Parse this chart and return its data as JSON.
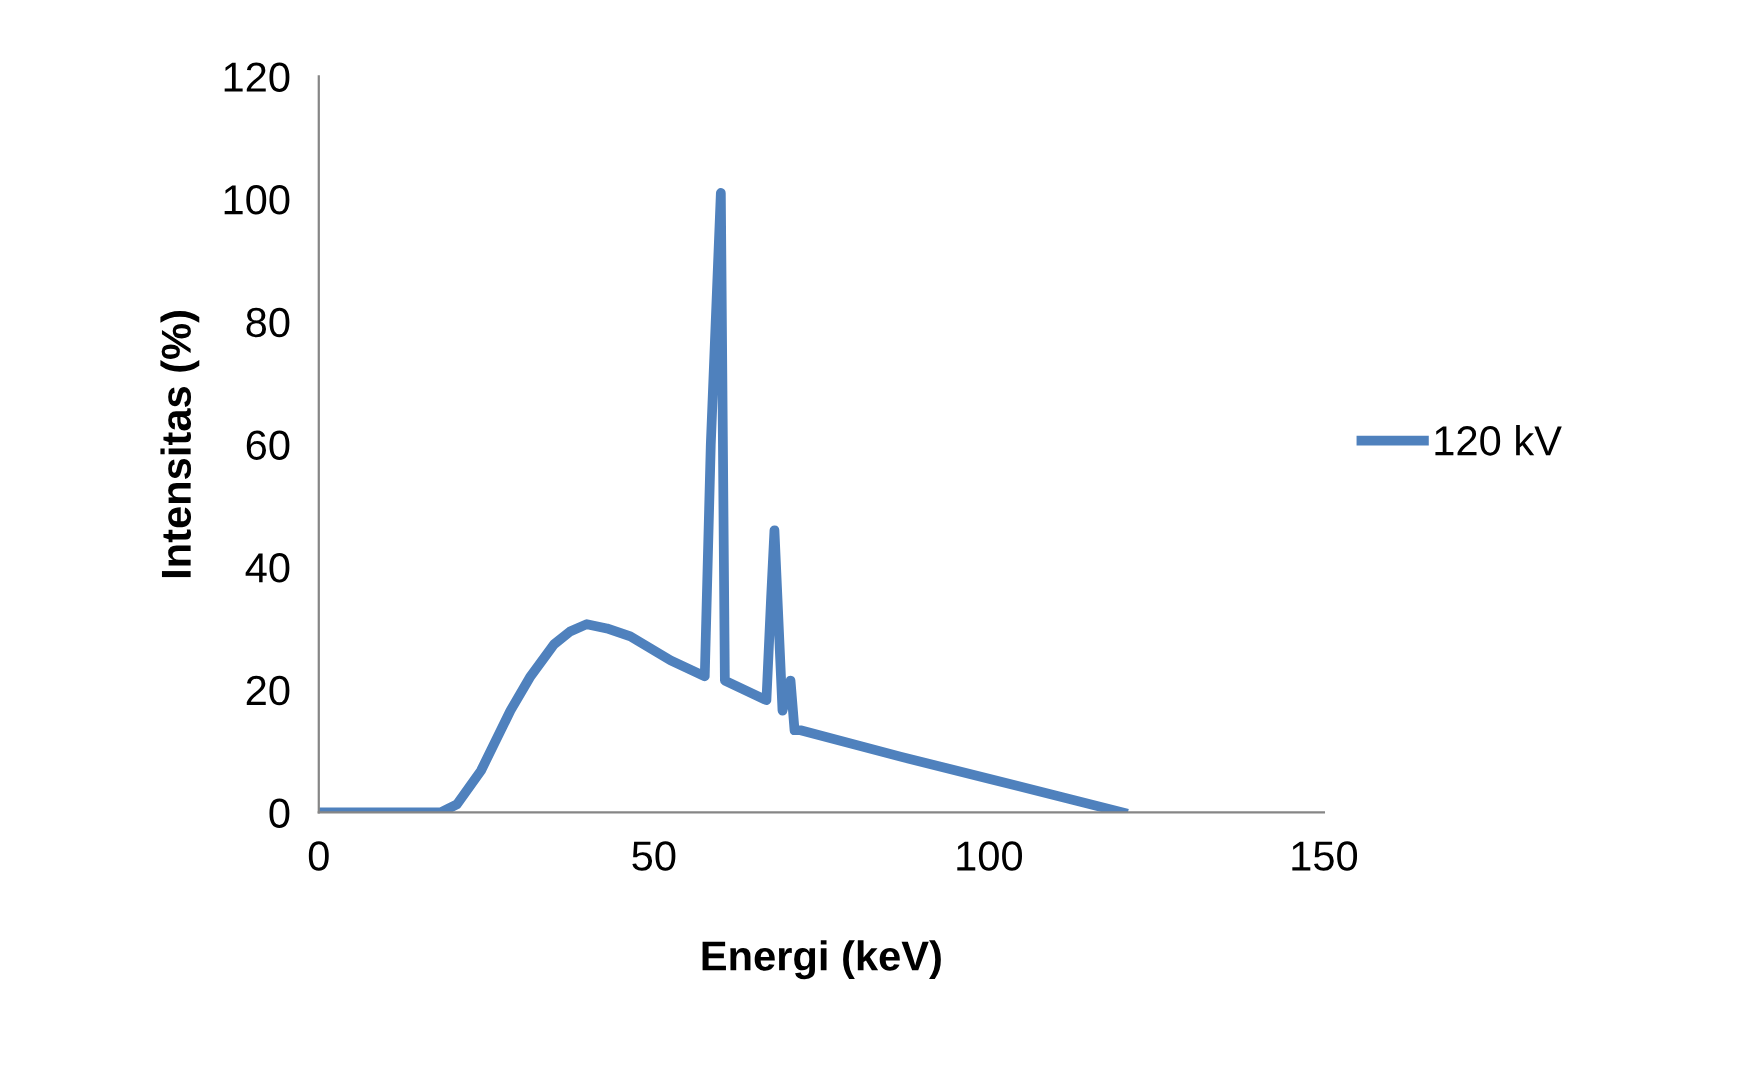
{
  "chart_data": {
    "type": "line",
    "xlabel": "Energi (keV)",
    "ylabel": "Intensitas (%)",
    "xlim": [
      0,
      150
    ],
    "xticks": [
      0,
      50,
      100,
      150
    ],
    "ylim": [
      0,
      120
    ],
    "yticks": [
      0,
      20,
      40,
      60,
      80,
      100,
      120
    ],
    "grid": false,
    "legend": "right",
    "marker": "none",
    "line_style": "solid",
    "series": [
      {
        "name": "120 kV",
        "color": "#4f81bd",
        "x": [
          0,
          18.2,
          20.6,
          24.2,
          28.6,
          31.6,
          35.1,
          37.5,
          40,
          43,
          46.5,
          52.5,
          57.6,
          58.5,
          60,
          60.6,
          66.8,
          67.5,
          68,
          69.2,
          70.4,
          71,
          71.9,
          86.8,
          100,
          120
        ],
        "values": [
          0,
          0,
          1.3,
          6.8,
          16.6,
          22.2,
          27.4,
          29.5,
          30.7,
          30,
          28.7,
          24.8,
          22.2,
          60,
          101,
          21.5,
          18.3,
          35,
          46,
          16.6,
          21.5,
          13.4,
          13.4,
          9.1,
          5.5,
          0
        ]
      }
    ]
  }
}
